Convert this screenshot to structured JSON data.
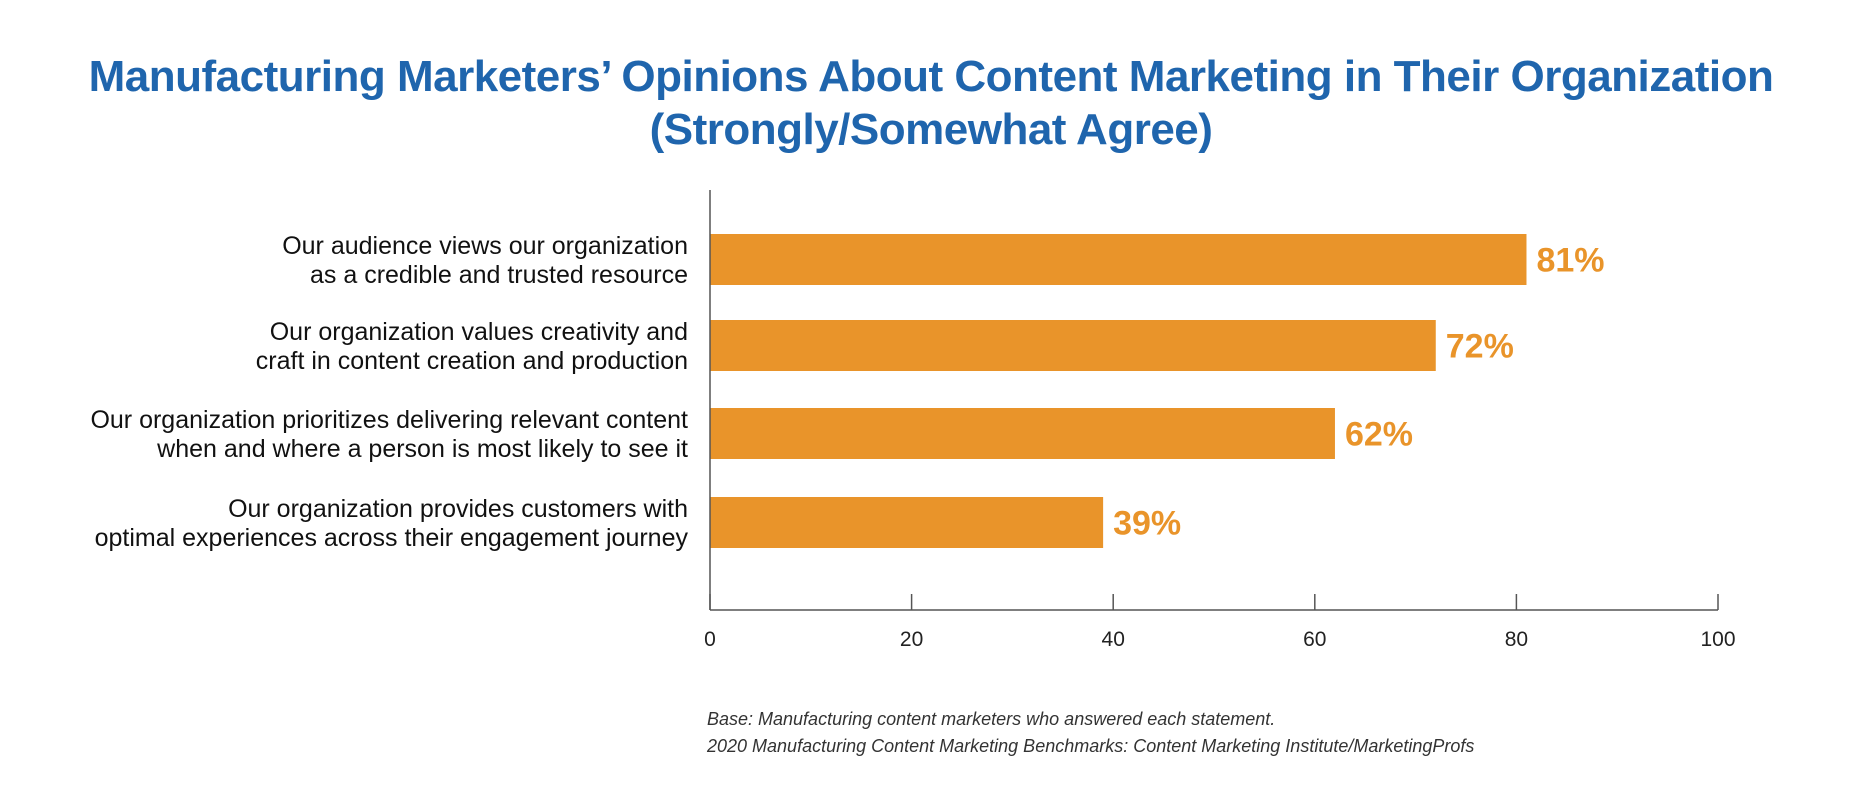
{
  "chart_data": {
    "type": "bar",
    "orientation": "horizontal",
    "title_lines": [
      "Manufacturing Marketers’ Opinions About Content Marketing in Their Organization",
      "(Strongly/Somewhat Agree)"
    ],
    "categories": [
      [
        "Our audience views our organization",
        "as a credible and trusted resource"
      ],
      [
        "Our organization values creativity and",
        "craft in content creation and production"
      ],
      [
        "Our organization prioritizes delivering relevant content",
        "when and where a person is most likely to see it"
      ],
      [
        "Our organization provides customers with",
        "optimal experiences across their engagement journey"
      ]
    ],
    "values": [
      81,
      72,
      62,
      39
    ],
    "value_labels": [
      "81%",
      "72%",
      "62%",
      "39%"
    ],
    "xlim": [
      0,
      100
    ],
    "x_ticks": [
      0,
      20,
      40,
      60,
      80,
      100
    ],
    "x_tick_labels": [
      "0",
      "20",
      "40",
      "60",
      "80",
      "100"
    ],
    "bar_color": "#e9942a",
    "title_color": "#1f65ad",
    "grid": false,
    "legend": "none"
  },
  "footnote": {
    "line1": "Base: Manufacturing content marketers who answered each statement.",
    "line2": "2020 Manufacturing Content Marketing Benchmarks: Content Marketing Institute/MarketingProfs"
  }
}
